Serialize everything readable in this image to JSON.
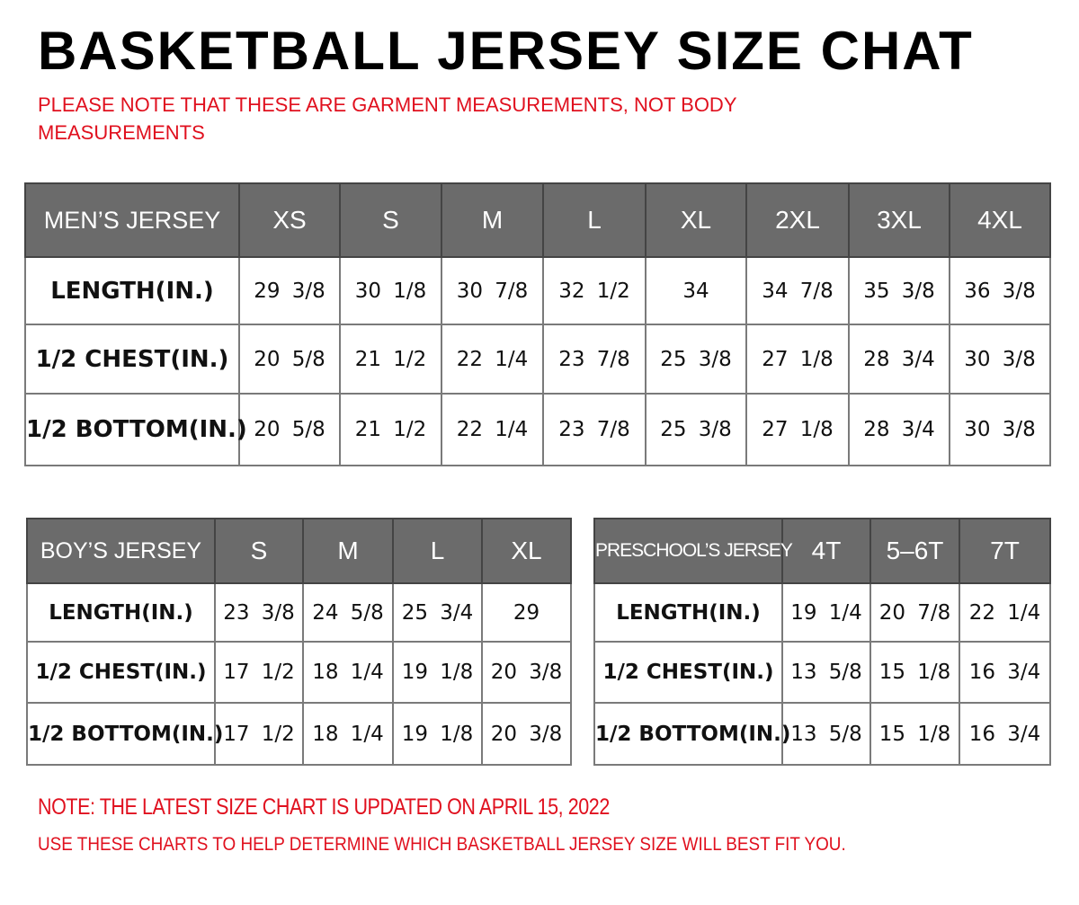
{
  "title": "BASKETBALL JERSEY SIZE CHAT",
  "garment_note_line1": "PLEASE NOTE THAT THESE ARE GARMENT MEASUREMENTS, NOT BODY",
  "garment_note_line2": "MEASUREMENTS",
  "colors": {
    "header_bg": "#6b6b6b",
    "note_red": "#e0101e"
  },
  "tables": {
    "men": {
      "header": "MEN’S JERSEY",
      "sizes": [
        "XS",
        "S",
        "M",
        "L",
        "XL",
        "2XL",
        "3XL",
        "4XL"
      ],
      "rows": [
        {
          "label": "LENGTH(IN.)",
          "values": [
            "29  3/8",
            "30  1/8",
            "30  7/8",
            "32  1/2",
            "34",
            "34  7/8",
            "35  3/8",
            "36  3/8"
          ]
        },
        {
          "label": "1/2  CHEST(IN.)",
          "values": [
            "20  5/8",
            "21  1/2",
            "22  1/4",
            "23  7/8",
            "25  3/8",
            "27  1/8",
            "28  3/4",
            "30  3/8"
          ]
        },
        {
          "label": "1/2  BOTTOM(IN.)",
          "values": [
            "20  5/8",
            "21  1/2",
            "22  1/4",
            "23  7/8",
            "25  3/8",
            "27  1/8",
            "28  3/4",
            "30  3/8"
          ]
        }
      ]
    },
    "boy": {
      "header": "BOY’S JERSEY",
      "sizes": [
        "S",
        "M",
        "L",
        "XL"
      ],
      "rows": [
        {
          "label": "LENGTH(IN.)",
          "values": [
            "23  3/8",
            "24  5/8",
            "25  3/4",
            "29"
          ]
        },
        {
          "label": "1/2  CHEST(IN.)",
          "values": [
            "17  1/2",
            "18  1/4",
            "19  1/8",
            "20  3/8"
          ]
        },
        {
          "label": "1/2  BOTTOM(IN.)",
          "values": [
            "17  1/2",
            "18  1/4",
            "19  1/8",
            "20  3/8"
          ]
        }
      ]
    },
    "preschool": {
      "header": "PRESCHOOL’S JERSEY",
      "sizes": [
        "4T",
        "5–6T",
        "7T"
      ],
      "rows": [
        {
          "label": "LENGTH(IN.)",
          "values": [
            "19  1/4",
            "20  7/8",
            "22  1/4"
          ]
        },
        {
          "label": "1/2  CHEST(IN.)",
          "values": [
            "13  5/8",
            "15  1/8",
            "16  3/4"
          ]
        },
        {
          "label": "1/2  BOTTOM(IN.)",
          "values": [
            "13  5/8",
            "15  1/8",
            "16  3/4"
          ]
        }
      ]
    }
  },
  "footer_note1": "NOTE: THE LATEST SIZE CHART IS UPDATED ON APRIL 15, 2022",
  "footer_note2": "USE THESE CHARTS TO HELP DETERMINE WHICH  BASKETBALL JERSEY  SIZE WILL BEST FIT YOU."
}
